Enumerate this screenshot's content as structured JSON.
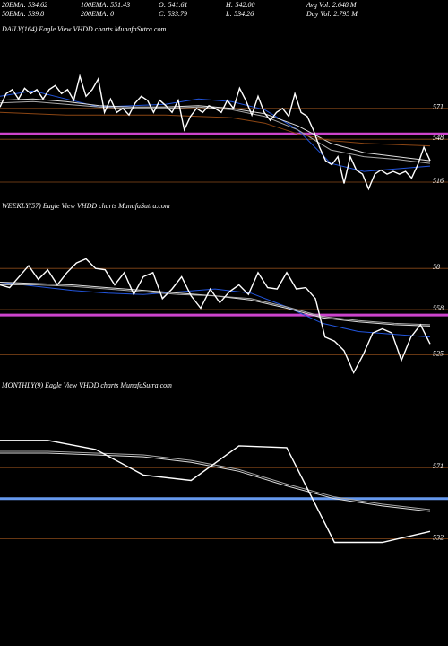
{
  "header": {
    "items": [
      "20EMA: 534.62",
      "100EMA: 551.43",
      "O: 541.61",
      "H: 542.00",
      "Avg Vol: 2.648 M",
      "50EMA: 539.8",
      "200EMA: 0",
      "C: 533.79",
      "L: 534.26",
      "Day Vol: 2.795 M"
    ]
  },
  "chart_data": [
    {
      "type": "line",
      "title": "DAILY(164) Eagle   View VHDD charts MunafaSutra.com",
      "ylim": [
        508,
        625
      ],
      "yticks": [
        571,
        548,
        516
      ],
      "hlines": [
        {
          "value": 552,
          "color": "#cc44cc"
        }
      ],
      "tick_line_color": "#8a4a1a",
      "series": [
        {
          "color": "#ffffff",
          "values": [
            572,
            582,
            585,
            578,
            586,
            582,
            585,
            578,
            585,
            588,
            582,
            585,
            577,
            595,
            580,
            585,
            593,
            568,
            578,
            568,
            571,
            566,
            575,
            580,
            577,
            568,
            577,
            573,
            568,
            577,
            555,
            565,
            571,
            568,
            573,
            571,
            568,
            577,
            571,
            586,
            577,
            566,
            580,
            568,
            562,
            568,
            571,
            565,
            582,
            568,
            565,
            555,
            542,
            532,
            529,
            535,
            515,
            535,
            525,
            522,
            511,
            522,
            525,
            522,
            524,
            522,
            524,
            519,
            529,
            542,
            532
          ]
        },
        {
          "color": "#8b4513",
          "values": [
            568,
            567,
            566,
            566,
            566,
            566,
            565,
            564,
            560,
            552,
            547,
            545,
            544,
            543
          ]
        },
        {
          "color": "#aaaaaa",
          "values": [
            575,
            576,
            574,
            572,
            571,
            571,
            572,
            570,
            565,
            555,
            540,
            535,
            533,
            530
          ]
        },
        {
          "color": "#dddddd",
          "values": [
            577,
            578,
            576,
            573,
            572,
            572,
            573,
            571,
            567,
            558,
            545,
            538,
            535,
            532
          ]
        },
        {
          "color": "#2255dd",
          "values": [
            580,
            584,
            578,
            572,
            573,
            574,
            578,
            576,
            570,
            555,
            530,
            524,
            526,
            528
          ]
        }
      ]
    },
    {
      "type": "line",
      "title": "WEEKLY(57) Eagle   View VHDD charts MunafaSutra.com",
      "ylim": [
        509,
        628
      ],
      "yticks": [
        {
          "value": 588,
          "label": "58"
        },
        558,
        525
      ],
      "hlines": [
        {
          "value": 554,
          "color": "#cc44cc"
        }
      ],
      "tick_line_color": "#8a4a1a",
      "series": [
        {
          "color": "#ffffff",
          "values": [
            576,
            574,
            582,
            590,
            580,
            587,
            576,
            585,
            592,
            595,
            588,
            587,
            576,
            585,
            569,
            582,
            585,
            566,
            573,
            582,
            568,
            559,
            573,
            563,
            571,
            576,
            569,
            585,
            574,
            573,
            585,
            573,
            574,
            566,
            538,
            535,
            528,
            512,
            525,
            541,
            544,
            541,
            521,
            538,
            547,
            533
          ]
        },
        {
          "color": "#aaaaaa",
          "values": [
            576,
            576,
            575,
            573,
            571,
            569,
            568,
            566,
            560,
            553,
            550,
            548,
            547
          ]
        },
        {
          "color": "#dddddd",
          "values": [
            578,
            577,
            576,
            574,
            572,
            570,
            568,
            565,
            559,
            552,
            549,
            547,
            546
          ]
        },
        {
          "color": "#2255dd",
          "values": [
            578,
            575,
            572,
            570,
            569,
            571,
            573,
            570,
            560,
            548,
            542,
            540,
            538
          ]
        }
      ]
    },
    {
      "type": "line",
      "title": "MONTHLY(9) Eagle   View VHDD charts MunafaSutra.com",
      "ylim": [
        483,
        611
      ],
      "yticks": [
        571,
        532
      ],
      "hlines": [
        {
          "value": 554,
          "color": "#6699ee"
        }
      ],
      "tick_line_color": "#8a4a1a",
      "series": [
        {
          "color": "#ffffff",
          "values": [
            586,
            586,
            581,
            567,
            564,
            583,
            582,
            530,
            530,
            536
          ]
        },
        {
          "color": "#aaaaaa",
          "values": [
            580,
            580,
            579,
            578,
            575,
            570,
            562,
            555,
            551,
            548
          ]
        },
        {
          "color": "#dddddd",
          "values": [
            579,
            579,
            578,
            577,
            574,
            569,
            561,
            554,
            550,
            547
          ]
        }
      ]
    }
  ]
}
